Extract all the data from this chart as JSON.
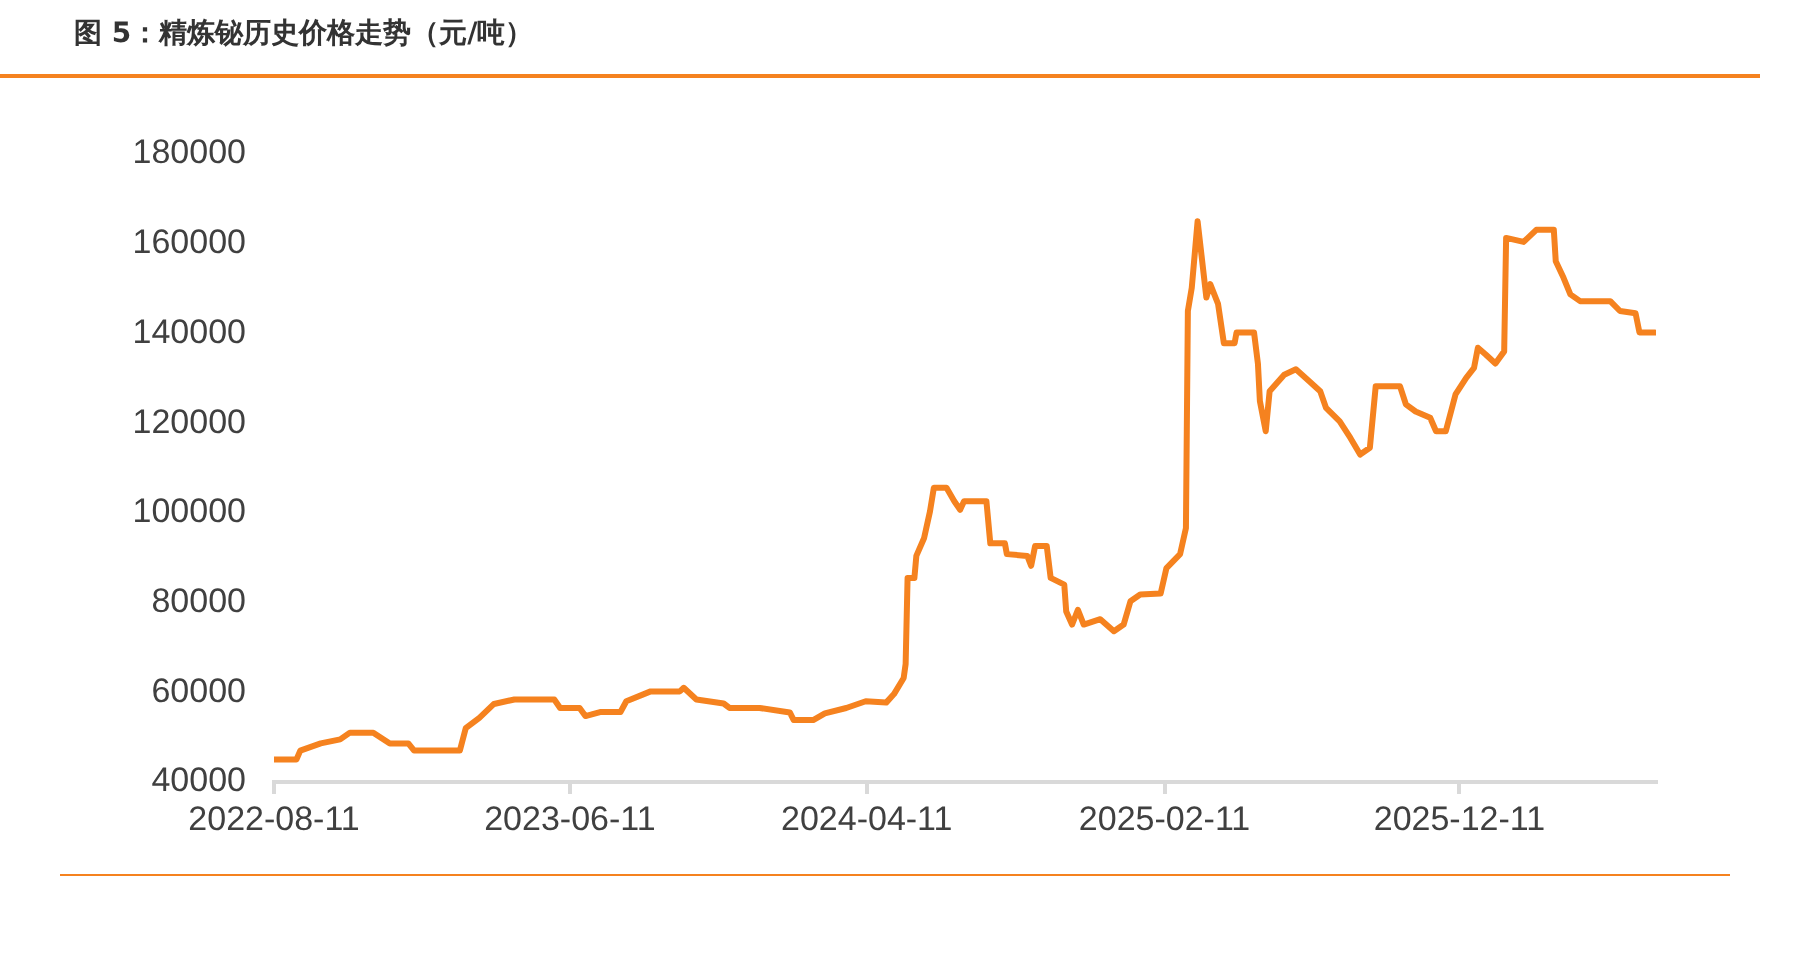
{
  "chart_data": {
    "type": "line",
    "title": "图 5：精炼铋历史价格走势（元/吨）",
    "x": [
      "2022-08-11",
      "2022-09-03",
      "2022-09-07",
      "2022-09-28",
      "2022-10-18",
      "2022-10-28",
      "2022-11-21",
      "2022-12-08",
      "2022-12-27",
      "2023-01-02",
      "2023-02-18",
      "2023-02-24",
      "2023-03-10",
      "2023-03-25",
      "2023-04-15",
      "2023-05-26",
      "2023-06-01",
      "2023-06-21",
      "2023-06-27",
      "2023-07-12",
      "2023-08-02",
      "2023-08-08",
      "2023-09-02",
      "2023-10-02",
      "2023-10-06",
      "2023-10-19",
      "2023-11-16",
      "2023-11-22",
      "2023-12-23",
      "2024-01-23",
      "2024-01-27",
      "2024-02-16",
      "2024-02-28",
      "2024-03-21",
      "2024-04-10",
      "2024-05-01",
      "2024-05-09",
      "2024-05-19",
      "2024-05-21",
      "2024-05-23",
      "2024-05-30",
      "2024-06-01",
      "2024-06-09",
      "2024-06-15",
      "2024-06-19",
      "2024-07-02",
      "2024-07-10",
      "2024-07-16",
      "2024-07-20",
      "2024-08-12",
      "2024-08-16",
      "2024-08-31",
      "2024-09-02",
      "2024-09-23",
      "2024-09-27",
      "2024-10-01",
      "2024-10-13",
      "2024-10-17",
      "2024-10-31",
      "2024-11-02",
      "2024-11-08",
      "2024-11-14",
      "2024-11-20",
      "2024-12-07",
      "2024-12-21",
      "2024-12-31",
      "2025-01-07",
      "2025-01-17",
      "2025-02-07",
      "2025-02-13",
      "2025-02-27",
      "2025-03-05",
      "2025-03-07",
      "2025-03-11",
      "2025-03-17",
      "2025-03-26",
      "2025-03-30",
      "2025-04-07",
      "2025-04-13",
      "2025-04-24",
      "2025-04-26",
      "2025-05-14",
      "2025-05-18",
      "2025-05-20",
      "2025-05-26",
      "2025-05-30",
      "2025-06-14",
      "2025-06-26",
      "2025-07-10",
      "2025-07-21",
      "2025-07-27",
      "2025-08-10",
      "2025-08-21",
      "2025-08-31",
      "2025-09-10",
      "2025-09-16",
      "2025-10-11",
      "2025-10-17",
      "2025-10-27",
      "2025-11-11",
      "2025-11-17",
      "2025-11-27",
      "2025-12-07",
      "2025-12-18",
      "2025-12-26",
      "2025-12-30",
      "2026-01-07",
      "2026-01-17",
      "2026-01-26",
      "2026-01-28",
      "2026-02-15",
      "2026-02-28",
      "2026-03-18",
      "2026-03-20",
      "2026-03-28",
      "2026-04-04",
      "2026-04-14",
      "2026-05-15",
      "2026-05-25",
      "2026-06-10",
      "2026-06-14",
      "2026-06-30"
    ],
    "series": [
      {
        "color": "#f5821f",
        "values": [
          45000,
          45000,
          47000,
          48600,
          49500,
          51000,
          51000,
          48600,
          48600,
          47000,
          47000,
          52000,
          54300,
          57400,
          58400,
          58400,
          56500,
          56500,
          54700,
          55600,
          55600,
          58000,
          60200,
          60200,
          61000,
          58400,
          57500,
          56500,
          56500,
          55500,
          53800,
          53800,
          55300,
          56500,
          58000,
          57700,
          59600,
          63200,
          66300,
          85500,
          85500,
          90400,
          94400,
          100300,
          105600,
          105600,
          102600,
          100700,
          102600,
          102600,
          93200,
          93200,
          90800,
          90400,
          88200,
          92600,
          92600,
          85500,
          84000,
          78000,
          75100,
          78400,
          75100,
          76300,
          73600,
          75100,
          80300,
          81800,
          82000,
          87700,
          90800,
          96600,
          145000,
          150200,
          165000,
          148000,
          151000,
          146600,
          137800,
          137800,
          140200,
          140200,
          133200,
          124900,
          118200,
          127100,
          130800,
          132000,
          129300,
          127100,
          123400,
          120400,
          116700,
          113000,
          114500,
          128200,
          128200,
          124200,
          122600,
          121200,
          118200,
          118200,
          126400,
          130100,
          132300,
          136800,
          135300,
          133300,
          136000,
          161300,
          160400,
          163100,
          163100,
          156100,
          152400,
          148700,
          147200,
          147200,
          145000,
          144500,
          140200,
          140200
        ]
      }
    ],
    "xlim": [
      "2022-08-11",
      "2026-07-01"
    ],
    "xticks": [
      "2022-08-11",
      "2023-06-11",
      "2024-04-11",
      "2025-02-11",
      "2025-12-11"
    ],
    "ylim": [
      40000,
      180000
    ],
    "yticks": [
      40000,
      60000,
      80000,
      100000,
      120000,
      140000,
      160000,
      180000
    ],
    "marker": "none",
    "line_style": "solid",
    "legend": false
  }
}
